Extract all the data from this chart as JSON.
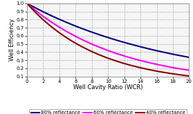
{
  "title": "",
  "xlabel": "Well Cavity Ratio (WCR)",
  "ylabel": "Well Efficiency",
  "xlim": [
    0,
    20
  ],
  "ylim": [
    0.1,
    1.0
  ],
  "yticks": [
    0.1,
    0.2,
    0.3,
    0.4,
    0.5,
    0.6,
    0.7,
    0.8,
    0.9,
    1.0
  ],
  "xticks": [
    0,
    2,
    4,
    6,
    8,
    10,
    12,
    14,
    16,
    18,
    20
  ],
  "curves": [
    {
      "label": "80% reflectance",
      "color": "#000080",
      "rho": 0.8,
      "end_val": 0.335
    },
    {
      "label": "60% reflectance",
      "color": "#FF00FF",
      "rho": 0.6,
      "end_val": 0.175
    },
    {
      "label": "40% reflectance",
      "color": "#8B0000",
      "rho": 0.4,
      "end_val": 0.105
    }
  ],
  "background_color": "#ffffff",
  "plot_bg_color": "#f5f5f5",
  "grid_color": "#aaaaaa",
  "legend_fontsize": 5.0,
  "axis_fontsize": 6.0,
  "tick_fontsize": 5.0,
  "linewidth": 1.5,
  "figsize": [
    2.79,
    1.65
  ],
  "dpi": 100
}
